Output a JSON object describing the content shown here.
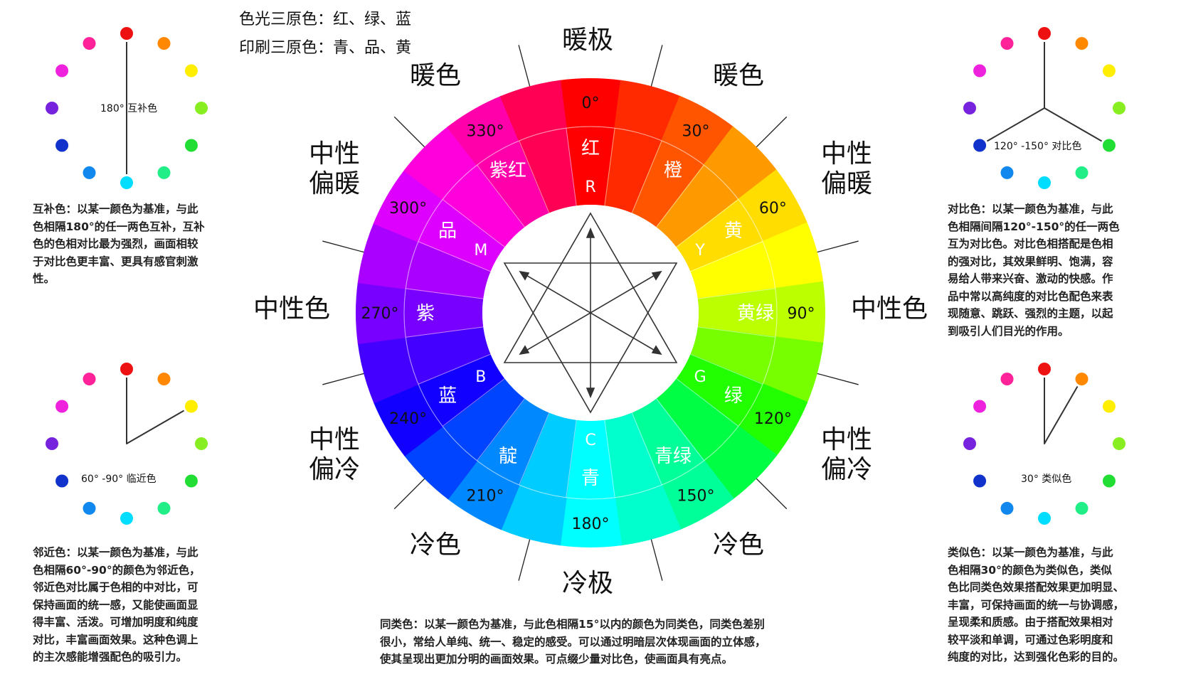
{
  "primaries": {
    "light": "色光三原色：红、绿、蓝",
    "print": "印刷三原色：青、品、黄"
  },
  "zones": {
    "warm_pole": "暖极",
    "cold_pole": "冷极",
    "warm_left": "暖色",
    "warm_right": "暖色",
    "cold_left": "冷色",
    "cold_right": "冷色",
    "neutral_left": "中性色",
    "neutral_right": "中性色",
    "neutral_warm_left": [
      "中性",
      "偏暖"
    ],
    "neutral_warm_right": [
      "中性",
      "偏暖"
    ],
    "neutral_cool_left": [
      "中性",
      "偏冷"
    ],
    "neutral_cool_right": [
      "中性",
      "偏冷"
    ]
  },
  "wheel": {
    "hues": [
      {
        "angle": 0,
        "color": "#ff0000"
      },
      {
        "angle": 15,
        "color": "#ff2a00"
      },
      {
        "angle": 30,
        "color": "#ff5500"
      },
      {
        "angle": 45,
        "color": "#ff9900"
      },
      {
        "angle": 60,
        "color": "#ffdd00"
      },
      {
        "angle": 75,
        "color": "#ffff00"
      },
      {
        "angle": 90,
        "color": "#bbff00"
      },
      {
        "angle": 105,
        "color": "#77ff00"
      },
      {
        "angle": 120,
        "color": "#22ff00"
      },
      {
        "angle": 135,
        "color": "#00ff44"
      },
      {
        "angle": 150,
        "color": "#00ff99"
      },
      {
        "angle": 165,
        "color": "#00ffcc"
      },
      {
        "angle": 180,
        "color": "#00ffff"
      },
      {
        "angle": 195,
        "color": "#00ccff"
      },
      {
        "angle": 210,
        "color": "#0088ff"
      },
      {
        "angle": 225,
        "color": "#0044ff"
      },
      {
        "angle": 240,
        "color": "#1100ff"
      },
      {
        "angle": 255,
        "color": "#4400ff"
      },
      {
        "angle": 270,
        "color": "#7700ff"
      },
      {
        "angle": 285,
        "color": "#aa00ff"
      },
      {
        "angle": 300,
        "color": "#dd00ff"
      },
      {
        "angle": 315,
        "color": "#ff00dd"
      },
      {
        "angle": 330,
        "color": "#ff00aa"
      },
      {
        "angle": 345,
        "color": "#ff0055"
      }
    ],
    "degree_labels": [
      {
        "angle": 0,
        "text": "0°"
      },
      {
        "angle": 30,
        "text": "30°"
      },
      {
        "angle": 60,
        "text": "60°"
      },
      {
        "angle": 90,
        "text": "90°"
      },
      {
        "angle": 120,
        "text": "120°"
      },
      {
        "angle": 150,
        "text": "150°"
      },
      {
        "angle": 180,
        "text": "180°"
      },
      {
        "angle": 210,
        "text": "210°"
      },
      {
        "angle": 240,
        "text": "240°"
      },
      {
        "angle": 270,
        "text": "270°"
      },
      {
        "angle": 300,
        "text": "300°"
      },
      {
        "angle": 330,
        "text": "330°"
      }
    ],
    "hue_names": [
      {
        "angle": 0,
        "text": "红"
      },
      {
        "angle": 30,
        "text": "橙"
      },
      {
        "angle": 60,
        "text": "黄"
      },
      {
        "angle": 90,
        "text": "黄绿"
      },
      {
        "angle": 120,
        "text": "绿"
      },
      {
        "angle": 150,
        "text": "青绿"
      },
      {
        "angle": 180,
        "text": "青"
      },
      {
        "angle": 210,
        "text": "靛"
      },
      {
        "angle": 240,
        "text": "蓝"
      },
      {
        "angle": 270,
        "text": "紫"
      },
      {
        "angle": 300,
        "text": "品"
      },
      {
        "angle": 330,
        "text": "紫红"
      }
    ],
    "letters": [
      {
        "angle": 0,
        "text": "R"
      },
      {
        "angle": 60,
        "text": "Y"
      },
      {
        "angle": 120,
        "text": "G"
      },
      {
        "angle": 180,
        "text": "C"
      },
      {
        "angle": 240,
        "text": "B"
      },
      {
        "angle": 300,
        "text": "M"
      }
    ]
  },
  "dot_colors": [
    "#ee1111",
    "#ff8800",
    "#ffee00",
    "#88ee22",
    "#22dd33",
    "#22ee88",
    "#00ddff",
    "#1188ee",
    "#1133cc",
    "#7722dd",
    "#ee22dd",
    "#ff2299"
  ],
  "minis": {
    "complementary": {
      "label": "180° 互补色"
    },
    "contrast": {
      "label": "120° -150° 对比色"
    },
    "adjacent": {
      "label": "60° -90° 临近色"
    },
    "analogous": {
      "label": "30° 类似色"
    }
  },
  "descriptions": {
    "complementary": [
      "互补色：以某一颜色为基准，与此",
      "色相隔180°的任一两色互补，互补",
      "色的色相对比最为强烈，画面相较",
      "于对比色更丰富、更具有感官刺激",
      "性。"
    ],
    "contrast": [
      "对比色：以某一颜色为基准，与此",
      "色相隔间隔120°-150°的任一两色",
      "互为对比色。对比色相搭配是色相",
      "的强对比，其效果鲜明、饱满，容",
      "易给人带来兴奋、激动的快感。作",
      "品中常以高纯度的对比色配色来表",
      "现随意、跳跃、强烈的主题，以起",
      "到吸引人们目光的作用。"
    ],
    "adjacent": [
      "邻近色：以某一颜色为基准，与此",
      "色相隔60°-90°的颜色为邻近色，",
      "邻近色对比属于色相的中对比，可",
      "保持画面的统一感，又能使画面显",
      "得丰富、活泼。可增加明度和纯度",
      "对比，丰富画面效果。这种色调上",
      "的主次感能增强配色的吸引力。"
    ],
    "analogous": [
      "类似色：以某一颜色为基准，与此",
      "色相隔30°的颜色为类似色，类似",
      "色比同类色效果搭配效果更加明显、",
      "丰富，可保持画面的统一与协调感，",
      "呈现柔和质感。由于搭配效果相对",
      "较平淡和单调，可通过色彩明度和",
      "纯度的对比，达到强化色彩的目的。"
    ],
    "same": [
      "同类色：以某一颜色为基准，与此色相隔15°以内的颜色为同类色，同类色差别",
      "很小，常给人单纯、统一、稳定的感受。可以通过明暗层次体现画面的立体感，",
      "使其呈现出更加分明的画面效果。可点缀少量对比色，使画面具有亮点。"
    ]
  }
}
